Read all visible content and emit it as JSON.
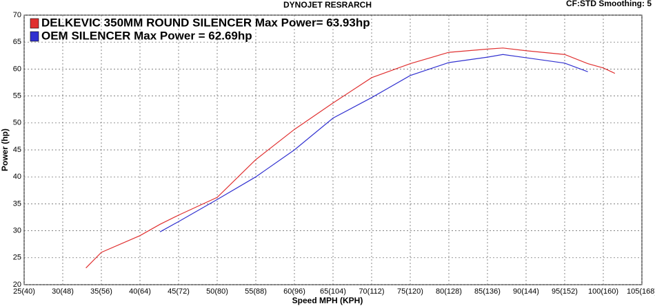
{
  "chart_data": {
    "type": "line",
    "title": "DYNOJET RESRARCH",
    "subtitle": "CF:STD Smoothing: 5",
    "x_label": "Speed MPH (KPH)",
    "y_label": "Power (hp)",
    "x": [
      33,
      35,
      40,
      42.6,
      45,
      50,
      55,
      60,
      65,
      70,
      75,
      80,
      85,
      87,
      90,
      95,
      98,
      100,
      101.5
    ],
    "series": [
      {
        "name": "DELKEVIC 350MM ROUND SILENCER Max Power= 63.93hp",
        "color": "#e03030",
        "values": [
          23.1,
          26.0,
          29.1,
          31.2,
          32.9,
          36.2,
          43.2,
          48.8,
          53.7,
          58.4,
          61.0,
          63.1,
          63.7,
          63.9,
          63.4,
          62.7,
          61.0,
          60.2,
          59.2
        ]
      },
      {
        "name": "OEM SILENCER Max Power = 62.69hp",
        "color": "#3030d0",
        "values": [
          null,
          null,
          null,
          29.8,
          31.7,
          35.8,
          40.0,
          45.0,
          50.9,
          54.7,
          58.8,
          61.2,
          62.2,
          62.7,
          62.1,
          61.1,
          59.5,
          null,
          null
        ]
      }
    ],
    "xlim": [
      25,
      105
    ],
    "ylim": [
      20,
      70
    ],
    "xticks": [
      {
        "value": 25,
        "label": "25(40)"
      },
      {
        "value": 30,
        "label": "30(48)"
      },
      {
        "value": 35,
        "label": "35(56)"
      },
      {
        "value": 40,
        "label": "40(64)"
      },
      {
        "value": 45,
        "label": "45(72)"
      },
      {
        "value": 50,
        "label": "50(80)"
      },
      {
        "value": 55,
        "label": "55(88)"
      },
      {
        "value": 60,
        "label": "60(96)"
      },
      {
        "value": 65,
        "label": "65(104)"
      },
      {
        "value": 70,
        "label": "70(112)"
      },
      {
        "value": 75,
        "label": "75(120)"
      },
      {
        "value": 80,
        "label": "80(128)"
      },
      {
        "value": 85,
        "label": "85(136)"
      },
      {
        "value": 90,
        "label": "90(144)"
      },
      {
        "value": 95,
        "label": "95(152)"
      },
      {
        "value": 100,
        "label": "100(160)"
      },
      {
        "value": 105,
        "label": "105(168)"
      }
    ],
    "yticks": [
      20,
      25,
      30,
      35,
      40,
      45,
      50,
      55,
      60,
      65,
      70
    ],
    "grid": true
  }
}
